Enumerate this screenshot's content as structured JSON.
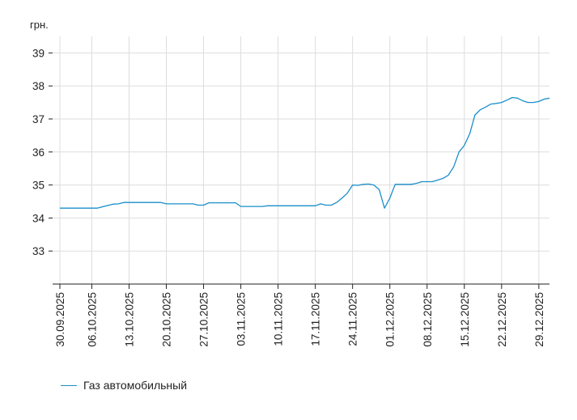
{
  "chart_data": {
    "type": "line",
    "ylabel": "грн.",
    "ylim": [
      32,
      39.5
    ],
    "yticks": [
      33,
      34,
      35,
      36,
      37,
      38,
      39
    ],
    "x_range": [
      "2025-09-30",
      "2025-12-31"
    ],
    "xticks": [
      "30.09.2025",
      "06.10.2025",
      "13.10.2025",
      "20.10.2025",
      "27.10.2025",
      "03.11.2025",
      "10.11.2025",
      "17.11.2025",
      "24.11.2025",
      "01.12.2025",
      "08.12.2025",
      "15.12.2025",
      "22.12.2025",
      "29.12.2025"
    ],
    "grid": true,
    "legend_position": "bottom-left",
    "series": [
      {
        "name": "Газ автомобильный",
        "color": "#1a8fc9",
        "points": [
          [
            "2025-09-30",
            34.3
          ],
          [
            "2025-10-07",
            34.3
          ],
          [
            "2025-10-10",
            34.42
          ],
          [
            "2025-10-11",
            34.43
          ],
          [
            "2025-10-12",
            34.47
          ],
          [
            "2025-10-19",
            34.47
          ],
          [
            "2025-10-20",
            34.43
          ],
          [
            "2025-10-25",
            34.43
          ],
          [
            "2025-10-26",
            34.39
          ],
          [
            "2025-10-27",
            34.39
          ],
          [
            "2025-10-28",
            34.46
          ],
          [
            "2025-11-02",
            34.46
          ],
          [
            "2025-11-03",
            34.35
          ],
          [
            "2025-11-07",
            34.35
          ],
          [
            "2025-11-08",
            34.37
          ],
          [
            "2025-11-17",
            34.37
          ],
          [
            "2025-11-18",
            34.43
          ],
          [
            "2025-11-19",
            34.39
          ],
          [
            "2025-11-20",
            34.39
          ],
          [
            "2025-11-21",
            34.47
          ],
          [
            "2025-11-22",
            34.6
          ],
          [
            "2025-11-23",
            34.75
          ],
          [
            "2025-11-24",
            35.0
          ],
          [
            "2025-11-25",
            34.99
          ],
          [
            "2025-11-26",
            35.02
          ],
          [
            "2025-11-27",
            35.03
          ],
          [
            "2025-11-28",
            35.0
          ],
          [
            "2025-11-29",
            34.86
          ],
          [
            "2025-11-30",
            34.3
          ],
          [
            "2025-12-01",
            34.6
          ],
          [
            "2025-12-02",
            35.02
          ],
          [
            "2025-12-05",
            35.02
          ],
          [
            "2025-12-06",
            35.05
          ],
          [
            "2025-12-07",
            35.1
          ],
          [
            "2025-12-09",
            35.1
          ],
          [
            "2025-12-10",
            35.15
          ],
          [
            "2025-12-11",
            35.2
          ],
          [
            "2025-12-12",
            35.3
          ],
          [
            "2025-12-13",
            35.55
          ],
          [
            "2025-12-14",
            36.0
          ],
          [
            "2025-12-15",
            36.2
          ],
          [
            "2025-12-16",
            36.55
          ],
          [
            "2025-12-17",
            37.12
          ],
          [
            "2025-12-18",
            37.28
          ],
          [
            "2025-12-19",
            37.36
          ],
          [
            "2025-12-20",
            37.45
          ],
          [
            "2025-12-21",
            37.47
          ],
          [
            "2025-12-22",
            37.5
          ],
          [
            "2025-12-23",
            37.57
          ],
          [
            "2025-12-24",
            37.65
          ],
          [
            "2025-12-25",
            37.63
          ],
          [
            "2025-12-26",
            37.55
          ],
          [
            "2025-12-27",
            37.5
          ],
          [
            "2025-12-28",
            37.5
          ],
          [
            "2025-12-29",
            37.53
          ],
          [
            "2025-12-30",
            37.6
          ],
          [
            "2025-12-31",
            37.63
          ]
        ]
      }
    ]
  }
}
